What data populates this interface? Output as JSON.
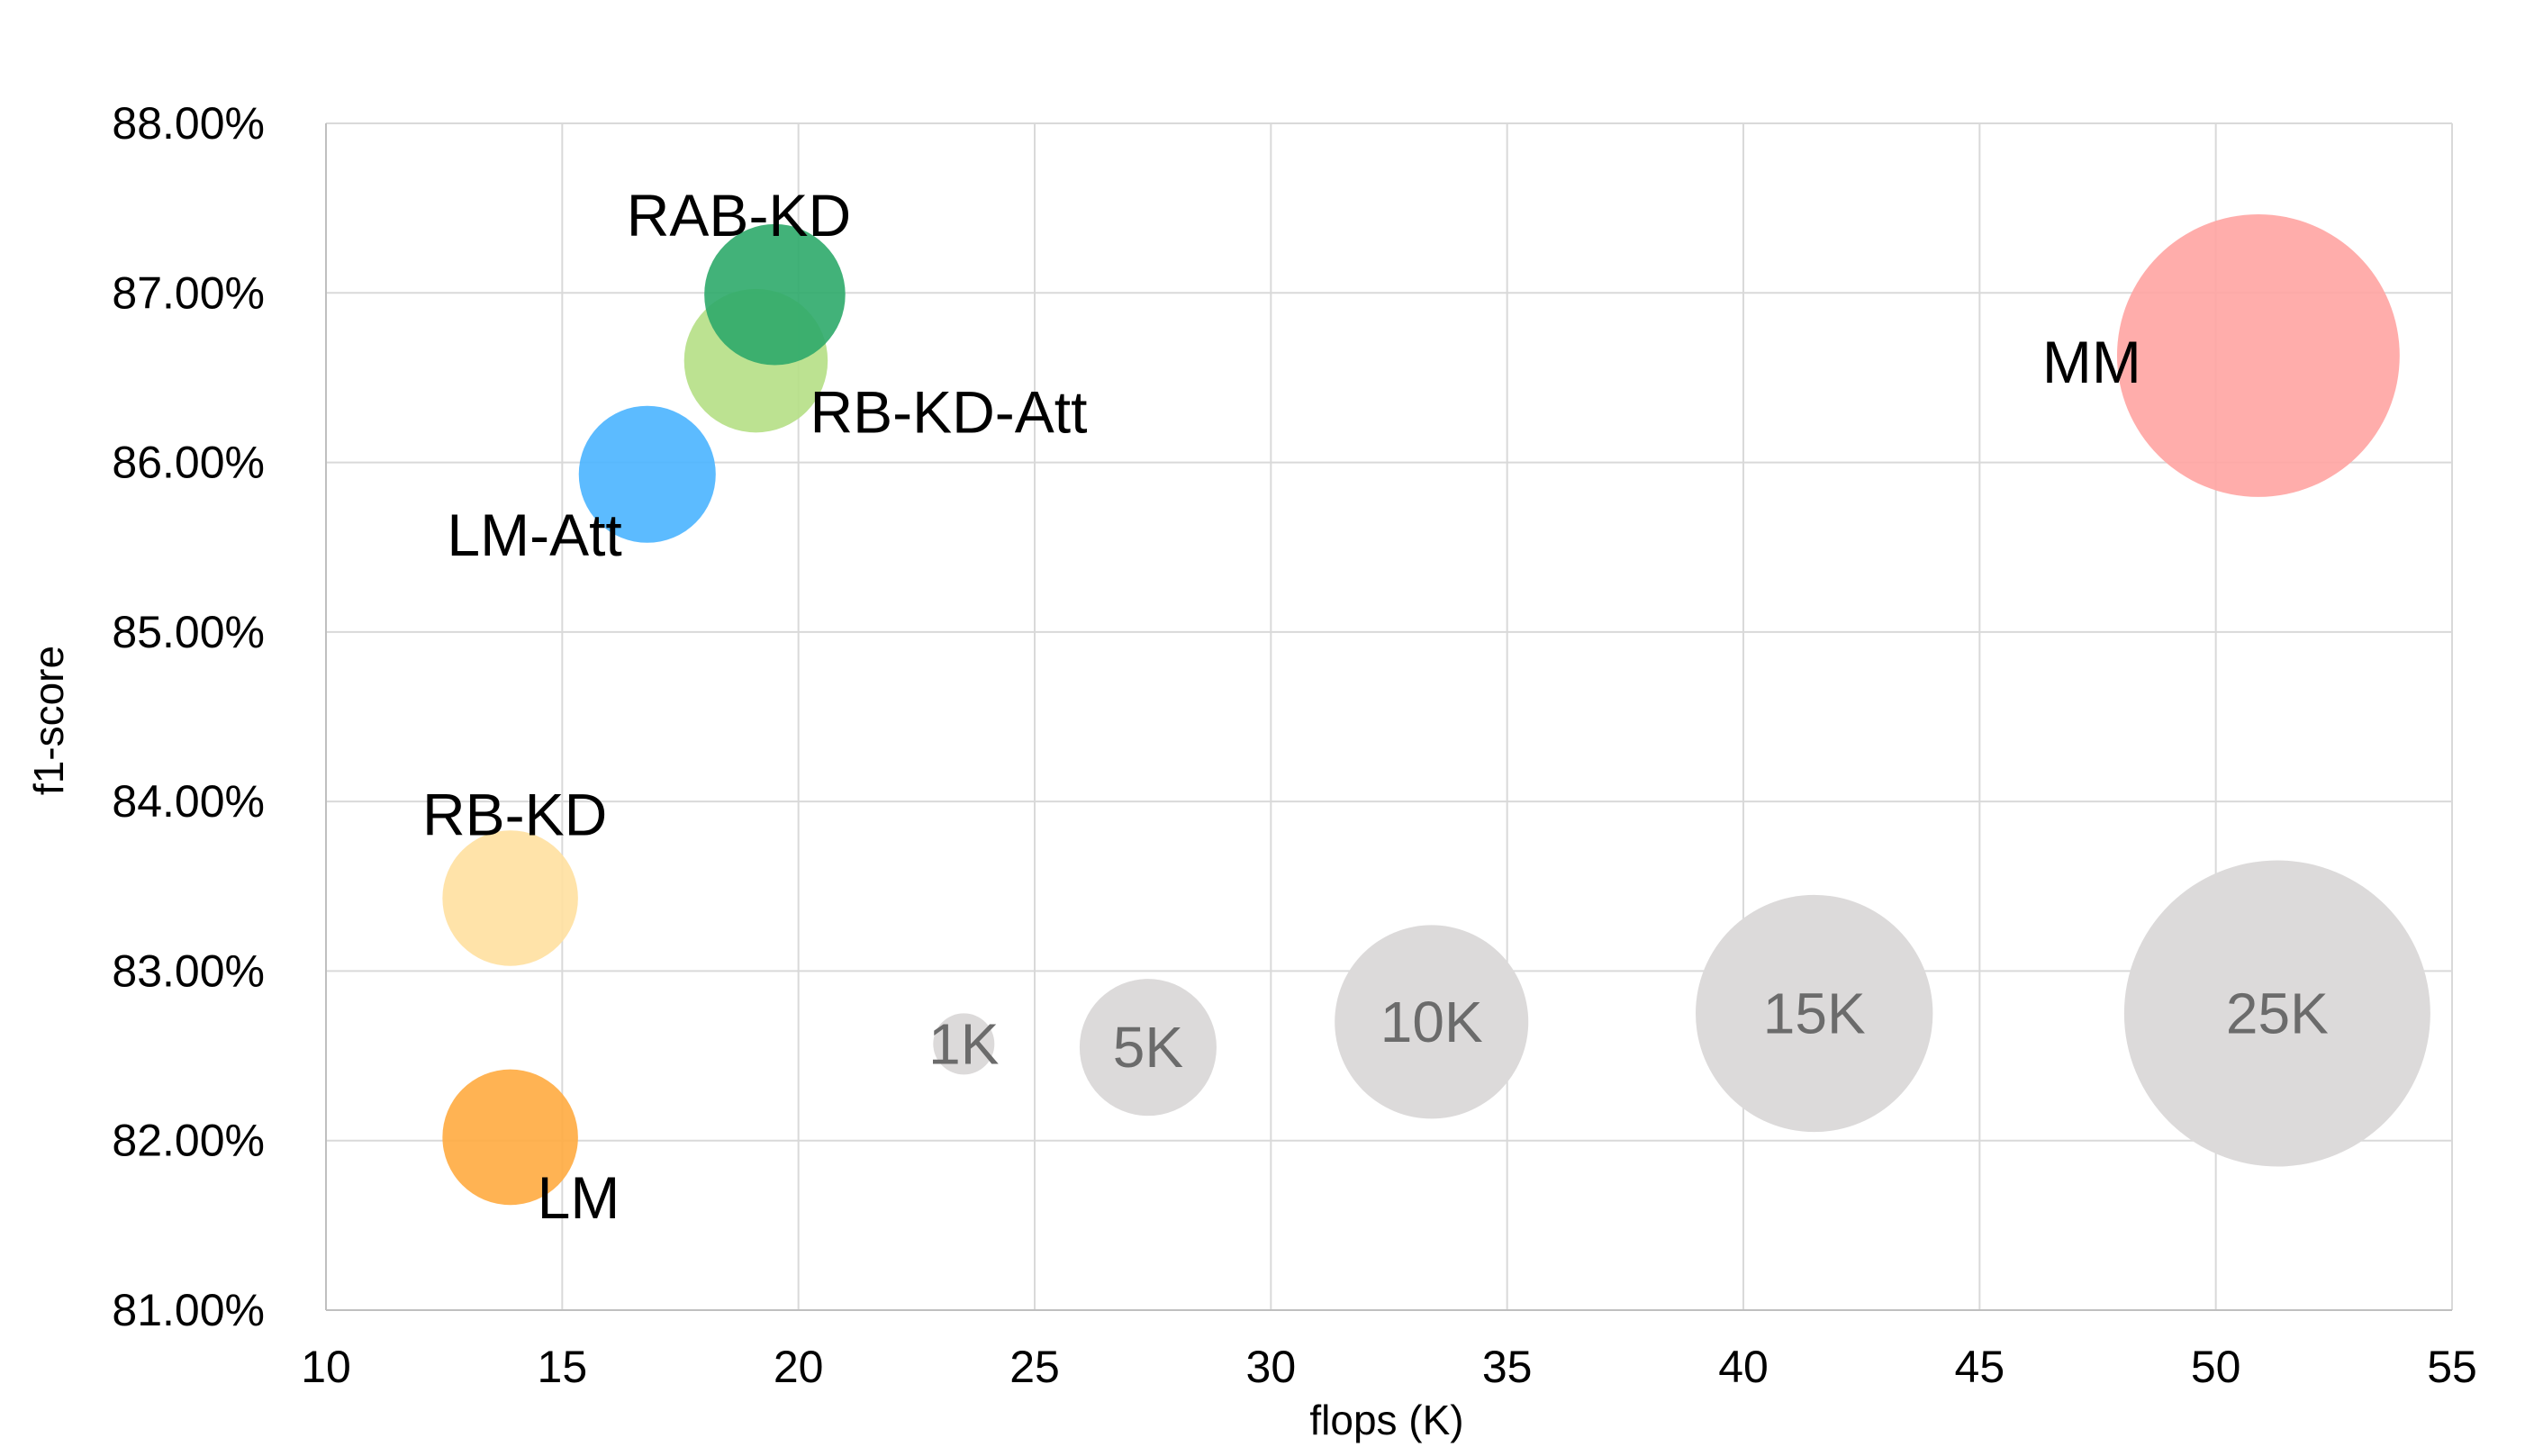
{
  "chart_data": {
    "type": "scatter",
    "subtype": "bubble",
    "xlabel": "flops (K)",
    "ylabel": "f1-score",
    "xlim": [
      10,
      55
    ],
    "ylim": [
      81,
      88
    ],
    "x_ticks": [
      "10",
      "15",
      "20",
      "25",
      "30",
      "35",
      "40",
      "45",
      "50",
      "55"
    ],
    "y_ticks": [
      "81.00%",
      "82.00%",
      "83.00%",
      "84.00%",
      "85.00%",
      "86.00%",
      "87.00%",
      "88.00%"
    ],
    "grid": true,
    "legend": "none",
    "models": [
      {
        "label": "LM",
        "x": 13.9,
        "y": 82.02,
        "size": 4.9,
        "color": "#ffab40"
      },
      {
        "label": "RB-KD",
        "x": 13.9,
        "y": 83.43,
        "size": 4.9,
        "color": "#ffe0a0"
      },
      {
        "label": "LM-Att",
        "x": 16.8,
        "y": 85.93,
        "size": 5.0,
        "color": "#4ab4ff"
      },
      {
        "label": "RB-KD-Att",
        "x": 19.1,
        "y": 86.6,
        "size": 5.5,
        "color": "#b5df85"
      },
      {
        "label": "RAB-KD",
        "x": 19.5,
        "y": 86.99,
        "size": 5.3,
        "color": "#2eaa6a"
      },
      {
        "label": "MM",
        "x": 50.9,
        "y": 86.63,
        "size": 21.3,
        "color": "#ffa4a2"
      }
    ],
    "size_reference": [
      {
        "label": "1K",
        "x": 23.5,
        "y": 82.57,
        "size": 1
      },
      {
        "label": "5K",
        "x": 27.4,
        "y": 82.55,
        "size": 5
      },
      {
        "label": "10K",
        "x": 33.4,
        "y": 82.7,
        "size": 10
      },
      {
        "label": "15K",
        "x": 41.5,
        "y": 82.75,
        "size": 15
      },
      {
        "label": "25K",
        "x": 51.3,
        "y": 82.75,
        "size": 25
      }
    ],
    "reference_color": "#dcdada"
  }
}
